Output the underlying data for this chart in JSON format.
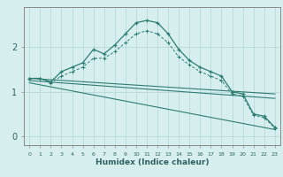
{
  "xlabel": "Humidex (Indice chaleur)",
  "ylabel": "",
  "background_color": "#d6eeee",
  "grid_color": "#b8d8d8",
  "line_color": "#2e7d72",
  "x_ticks": [
    0,
    1,
    2,
    3,
    4,
    5,
    6,
    7,
    8,
    9,
    10,
    11,
    12,
    13,
    14,
    15,
    16,
    17,
    18,
    19,
    20,
    21,
    22,
    23
  ],
  "ylim": [
    -0.2,
    2.9
  ],
  "xlim": [
    -0.5,
    23.5
  ],
  "series1_x": [
    0,
    1,
    2,
    3,
    4,
    5,
    6,
    7,
    8,
    9,
    10,
    11,
    12,
    13,
    14,
    15,
    16,
    17,
    18,
    19,
    20,
    21,
    22,
    23
  ],
  "series1_y": [
    1.3,
    1.3,
    1.22,
    1.45,
    1.55,
    1.65,
    1.95,
    1.85,
    2.05,
    2.3,
    2.55,
    2.6,
    2.55,
    2.3,
    1.95,
    1.7,
    1.55,
    1.45,
    1.35,
    1.0,
    0.95,
    0.5,
    0.45,
    0.2
  ],
  "series2_x": [
    0,
    1,
    2,
    3,
    4,
    5,
    6,
    7,
    8,
    9,
    10,
    11,
    12,
    13,
    14,
    15,
    16,
    17,
    18,
    19,
    20,
    21,
    22,
    23
  ],
  "series2_y": [
    1.3,
    1.3,
    1.2,
    1.35,
    1.45,
    1.55,
    1.75,
    1.75,
    1.9,
    2.1,
    2.3,
    2.37,
    2.3,
    2.1,
    1.78,
    1.6,
    1.45,
    1.35,
    1.25,
    0.95,
    0.9,
    0.47,
    0.42,
    0.18
  ],
  "series3_x": [
    0,
    23
  ],
  "series3_y": [
    1.3,
    0.95
  ],
  "series4_x": [
    0,
    23
  ],
  "series4_y": [
    1.25,
    0.85
  ],
  "series5_x": [
    0,
    23
  ],
  "series5_y": [
    1.2,
    0.15
  ],
  "yticks": [
    0,
    1,
    2
  ]
}
